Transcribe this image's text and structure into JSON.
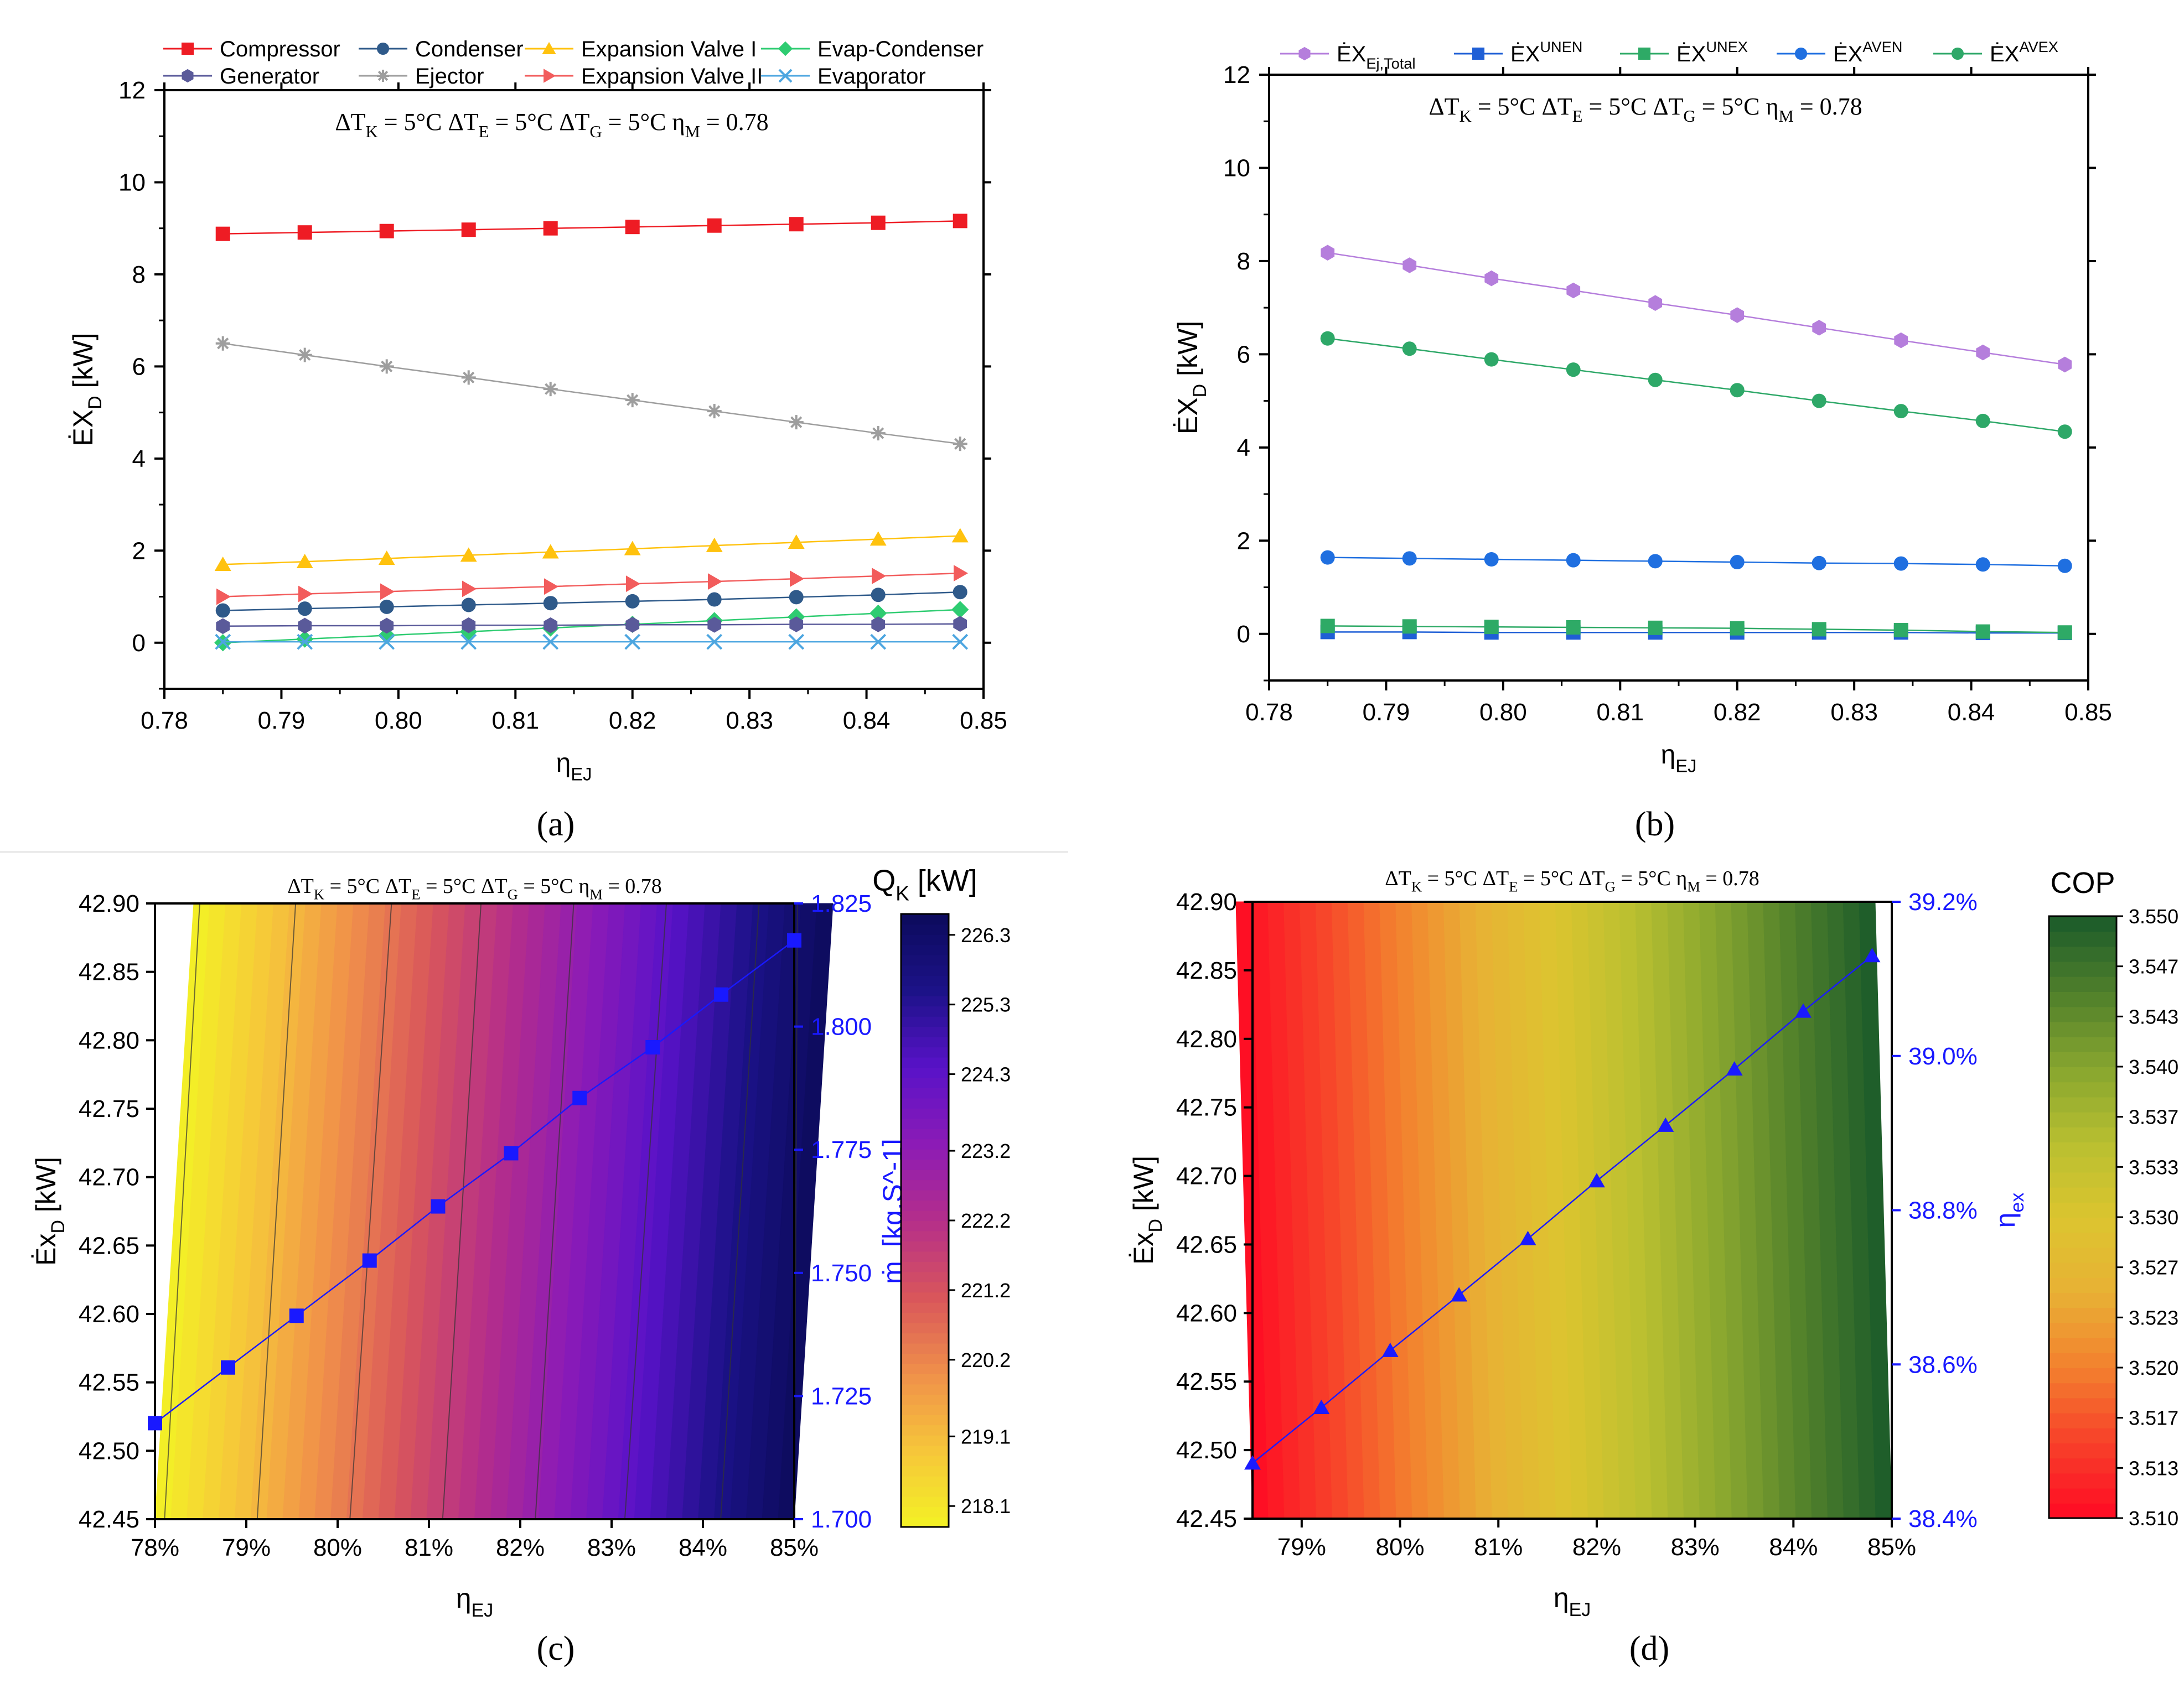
{
  "figure": {
    "panel_labels": [
      "(a)",
      "(b)",
      "(c)",
      "(d)"
    ],
    "condition_parts": {
      "dTK": {
        "main": "ΔT",
        "sub": "K",
        "rest": " = 5°C"
      },
      "dTE": {
        "main": "ΔT",
        "sub": "E",
        "rest": " = 5°C"
      },
      "dTG": {
        "main": "ΔT",
        "sub": "G",
        "rest": " = 5°C"
      },
      "etaM": {
        "main": "η",
        "sub": "M",
        "rest": " = 0.78"
      }
    }
  },
  "chart_data": [
    {
      "id": "a",
      "type": "line",
      "title": "",
      "xlabel": "η_EJ",
      "ylabel": "ĖX_D [kW]",
      "xlim": [
        0.78,
        0.85
      ],
      "ylim": [
        -1,
        12
      ],
      "xticks": [
        0.78,
        0.79,
        0.8,
        0.81,
        0.82,
        0.83,
        0.84,
        0.85
      ],
      "xtick_labels": [
        "0.78",
        "0.79",
        "0.80",
        "0.81",
        "0.82",
        "0.83",
        "0.84",
        "0.85"
      ],
      "yticks": [
        0,
        2,
        4,
        6,
        8,
        10,
        12
      ],
      "ytick_labels": [
        "0",
        "2",
        "4",
        "6",
        "8",
        "10",
        "12"
      ],
      "x": [
        0.785,
        0.792,
        0.799,
        0.806,
        0.813,
        0.82,
        0.827,
        0.834,
        0.841,
        0.848
      ],
      "legend_position": "top",
      "series": [
        {
          "name": "Compressor",
          "color": "#ee1c24",
          "marker": "square",
          "values": [
            8.88,
            8.91,
            8.94,
            8.97,
            9.0,
            9.03,
            9.06,
            9.09,
            9.12,
            9.16
          ]
        },
        {
          "name": "Condenser",
          "color": "#2f5a8a",
          "marker": "circle",
          "values": [
            0.7,
            0.74,
            0.78,
            0.82,
            0.86,
            0.9,
            0.94,
            0.99,
            1.04,
            1.1
          ]
        },
        {
          "name": "Expansion Valve I",
          "color": "#ffc20e",
          "marker": "triangle-up",
          "values": [
            1.7,
            1.76,
            1.83,
            1.9,
            1.97,
            2.04,
            2.11,
            2.18,
            2.25,
            2.32
          ]
        },
        {
          "name": "Evap-Condenser",
          "color": "#2ecc71",
          "marker": "diamond",
          "values": [
            0.0,
            0.08,
            0.16,
            0.24,
            0.32,
            0.4,
            0.48,
            0.56,
            0.64,
            0.72
          ]
        },
        {
          "name": "Generator",
          "color": "#5a5a9a",
          "marker": "hexagon",
          "values": [
            0.36,
            0.37,
            0.37,
            0.38,
            0.38,
            0.39,
            0.39,
            0.4,
            0.4,
            0.41
          ]
        },
        {
          "name": "Ejector",
          "color": "#9e9e9e",
          "marker": "star",
          "values": [
            6.5,
            6.25,
            6.0,
            5.76,
            5.51,
            5.27,
            5.03,
            4.79,
            4.55,
            4.32
          ]
        },
        {
          "name": "Expansion Valve II",
          "color": "#f25c5c",
          "marker": "triangle-right",
          "values": [
            1.0,
            1.06,
            1.11,
            1.17,
            1.22,
            1.28,
            1.33,
            1.39,
            1.45,
            1.51
          ]
        },
        {
          "name": "Evaporator",
          "color": "#4da6e0",
          "marker": "x",
          "values": [
            0.02,
            0.02,
            0.02,
            0.02,
            0.02,
            0.02,
            0.02,
            0.02,
            0.02,
            0.02
          ]
        }
      ]
    },
    {
      "id": "b",
      "type": "line",
      "title": "",
      "xlabel": "η_EJ",
      "ylabel": "ĖX_D [kW]",
      "xlim": [
        0.78,
        0.85
      ],
      "ylim": [
        -1,
        12
      ],
      "xticks": [
        0.78,
        0.79,
        0.8,
        0.81,
        0.82,
        0.83,
        0.84,
        0.85
      ],
      "xtick_labels": [
        "0.78",
        "0.79",
        "0.80",
        "0.81",
        "0.82",
        "0.83",
        "0.84",
        "0.85"
      ],
      "yticks": [
        0,
        2,
        4,
        6,
        8,
        10,
        12
      ],
      "ytick_labels": [
        "0",
        "2",
        "4",
        "6",
        "8",
        "10",
        "12"
      ],
      "x": [
        0.785,
        0.792,
        0.799,
        0.806,
        0.813,
        0.82,
        0.827,
        0.834,
        0.841,
        0.848
      ],
      "legend_position": "top",
      "series": [
        {
          "name": "ĖX_Ej,Total",
          "color": "#b57edc",
          "marker": "hexagon",
          "values": [
            8.18,
            7.91,
            7.63,
            7.37,
            7.1,
            6.84,
            6.57,
            6.3,
            6.04,
            5.78
          ]
        },
        {
          "name": "ĖX^UNEN",
          "color": "#1f5fd6",
          "marker": "square",
          "values": [
            0.04,
            0.04,
            0.03,
            0.03,
            0.03,
            0.03,
            0.03,
            0.03,
            0.02,
            0.02
          ]
        },
        {
          "name": "ĖX^UNEX",
          "color": "#2eaa66",
          "marker": "square",
          "values": [
            0.17,
            0.16,
            0.15,
            0.14,
            0.13,
            0.12,
            0.1,
            0.08,
            0.05,
            0.03
          ]
        },
        {
          "name": "ĖX^AVEN",
          "color": "#1f6fe0",
          "marker": "circle",
          "values": [
            1.64,
            1.62,
            1.6,
            1.58,
            1.56,
            1.54,
            1.52,
            1.51,
            1.49,
            1.46
          ]
        },
        {
          "name": "ĖX^AVEX",
          "color": "#2ea868",
          "marker": "circle",
          "values": [
            6.34,
            6.12,
            5.89,
            5.67,
            5.45,
            5.23,
            5.0,
            4.78,
            4.57,
            4.34
          ]
        }
      ]
    },
    {
      "id": "c",
      "type": "heatmap",
      "title": "",
      "xlabel": "η_EJ",
      "ylabel": "Ėx_D [kW]",
      "y2label": "ṁ_r [kg.S^-1]",
      "colorbar_label": "Q_K [kW]",
      "xlim": [
        78,
        85
      ],
      "ylim": [
        42.45,
        42.9
      ],
      "y2lim": [
        1.7,
        1.825
      ],
      "xtick_labels": [
        "78%",
        "79%",
        "80%",
        "81%",
        "82%",
        "83%",
        "84%",
        "85%"
      ],
      "ytick_labels": [
        "42.45",
        "42.50",
        "42.55",
        "42.60",
        "42.65",
        "42.70",
        "42.75",
        "42.80",
        "42.85",
        "42.90"
      ],
      "y2tick_labels": [
        "1.700",
        "1.725",
        "1.750",
        "1.775",
        "1.800",
        "1.825"
      ],
      "colorbar_range": [
        217.8,
        226.6
      ],
      "colorbar_tick_labels": [
        "218.1",
        "219.1",
        "220.2",
        "221.2",
        "222.2",
        "223.2",
        "224.3",
        "225.3",
        "226.3"
      ],
      "colorbar_ticks": [
        218.1,
        219.1,
        220.2,
        221.2,
        222.2,
        223.2,
        224.3,
        225.3,
        226.3
      ],
      "colormap": [
        "#f3f225",
        "#f6c63a",
        "#f0904a",
        "#d9565b",
        "#b52e8a",
        "#8c1bb6",
        "#5912c8",
        "#1c1288",
        "#0c0b5c"
      ],
      "marker_series": {
        "name": "ṁ_r",
        "color": "#1919ff",
        "marker": "square",
        "x": [
          78.0,
          78.8,
          79.55,
          80.35,
          81.1,
          81.9,
          82.65,
          83.45,
          84.2,
          85.0
        ],
        "y2": [
          1.7195,
          1.7308,
          1.7413,
          1.7525,
          1.7635,
          1.7743,
          1.7855,
          1.7958,
          1.8065,
          1.8175
        ]
      }
    },
    {
      "id": "d",
      "type": "heatmap",
      "title": "",
      "xlabel": "η_EJ",
      "ylabel": "Ėx_D [kW]",
      "y2label": "η_ex",
      "colorbar_label": "COP",
      "xlim": [
        78.5,
        85
      ],
      "ylim": [
        42.45,
        42.9
      ],
      "y2lim": [
        38.4,
        39.2
      ],
      "xtick_labels": [
        "79%",
        "80%",
        "81%",
        "82%",
        "83%",
        "84%",
        "85%"
      ],
      "ytick_labels": [
        "42.45",
        "42.50",
        "42.55",
        "42.60",
        "42.65",
        "42.70",
        "42.75",
        "42.80",
        "42.85",
        "42.90"
      ],
      "y2tick_labels": [
        "38.4%",
        "38.6%",
        "38.8%",
        "39.0%",
        "39.2%"
      ],
      "colorbar_range": [
        3.51,
        3.55
      ],
      "colorbar_tick_labels": [
        "3.510",
        "3.513",
        "3.517",
        "3.520",
        "3.523",
        "3.527",
        "3.530",
        "3.533",
        "3.537",
        "3.540",
        "3.543",
        "3.547",
        "3.550"
      ],
      "colormap": [
        "#ff0a23",
        "#f7402a",
        "#f3802e",
        "#e8b135",
        "#dcc52f",
        "#b8bf30",
        "#86a52f",
        "#4f7f2b",
        "#1a5a2a"
      ],
      "marker_series": {
        "name": "η_ex",
        "color": "#1a1aff",
        "marker": "triangle-up",
        "x": [
          78.5,
          79.2,
          79.9,
          80.6,
          81.3,
          82.0,
          82.7,
          83.4,
          84.1,
          84.8
        ],
        "y2": [
          38.472,
          38.544,
          38.618,
          38.69,
          38.763,
          38.838,
          38.91,
          38.983,
          39.058,
          39.13
        ]
      }
    }
  ]
}
